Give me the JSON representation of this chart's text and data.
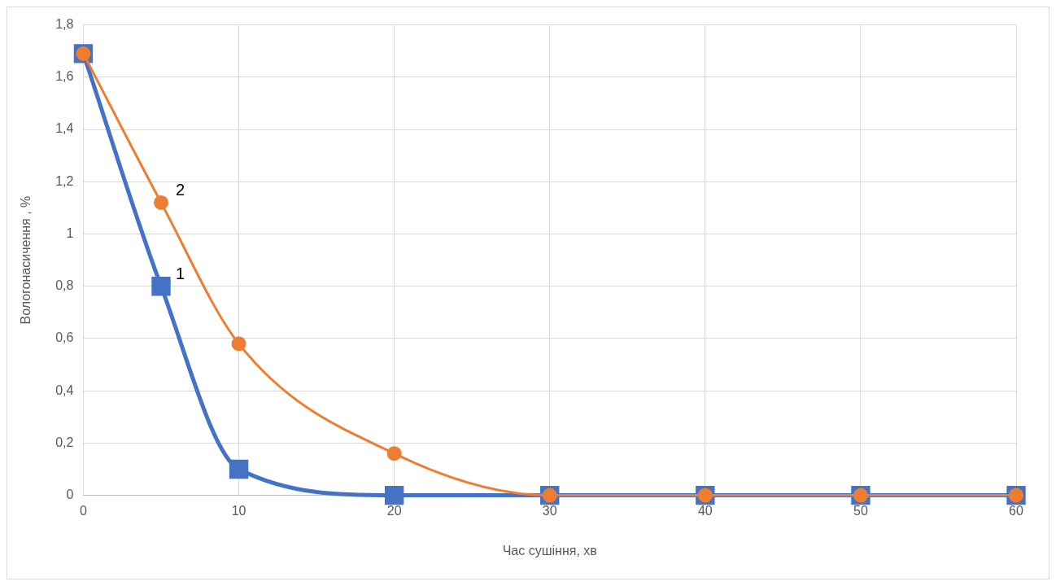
{
  "chart_data": {
    "type": "line",
    "xlabel": "Час сушіння, хв",
    "ylabel": "Вологонасичення , %",
    "x": [
      0,
      5,
      10,
      20,
      30,
      40,
      50,
      60
    ],
    "series": [
      {
        "name": "1",
        "color": "#4472c4",
        "marker": "square",
        "values": [
          1.69,
          0.8,
          0.1,
          0,
          0,
          0,
          0,
          0
        ]
      },
      {
        "name": "2",
        "color": "#ed7d31",
        "marker": "circle",
        "values": [
          1.69,
          1.12,
          0.58,
          0.16,
          0,
          0,
          0,
          0
        ]
      }
    ],
    "xlim": [
      0,
      60
    ],
    "xticks": [
      0,
      10,
      20,
      30,
      40,
      50,
      60
    ],
    "ylim": [
      0,
      1.8
    ],
    "yticks": [
      0,
      {
        "value": 0.2,
        "label": "0,2"
      },
      {
        "value": 0.4,
        "label": "0,4"
      },
      {
        "value": 0.6,
        "label": "0,6"
      },
      {
        "value": 0.8,
        "label": "0,8"
      },
      1,
      {
        "value": 1.2,
        "label": "1,2"
      },
      {
        "value": 1.4,
        "label": "1,4"
      },
      {
        "value": 1.6,
        "label": "1,6"
      },
      {
        "value": 1.8,
        "label": "1,8"
      }
    ],
    "grid": true,
    "legend": false
  }
}
